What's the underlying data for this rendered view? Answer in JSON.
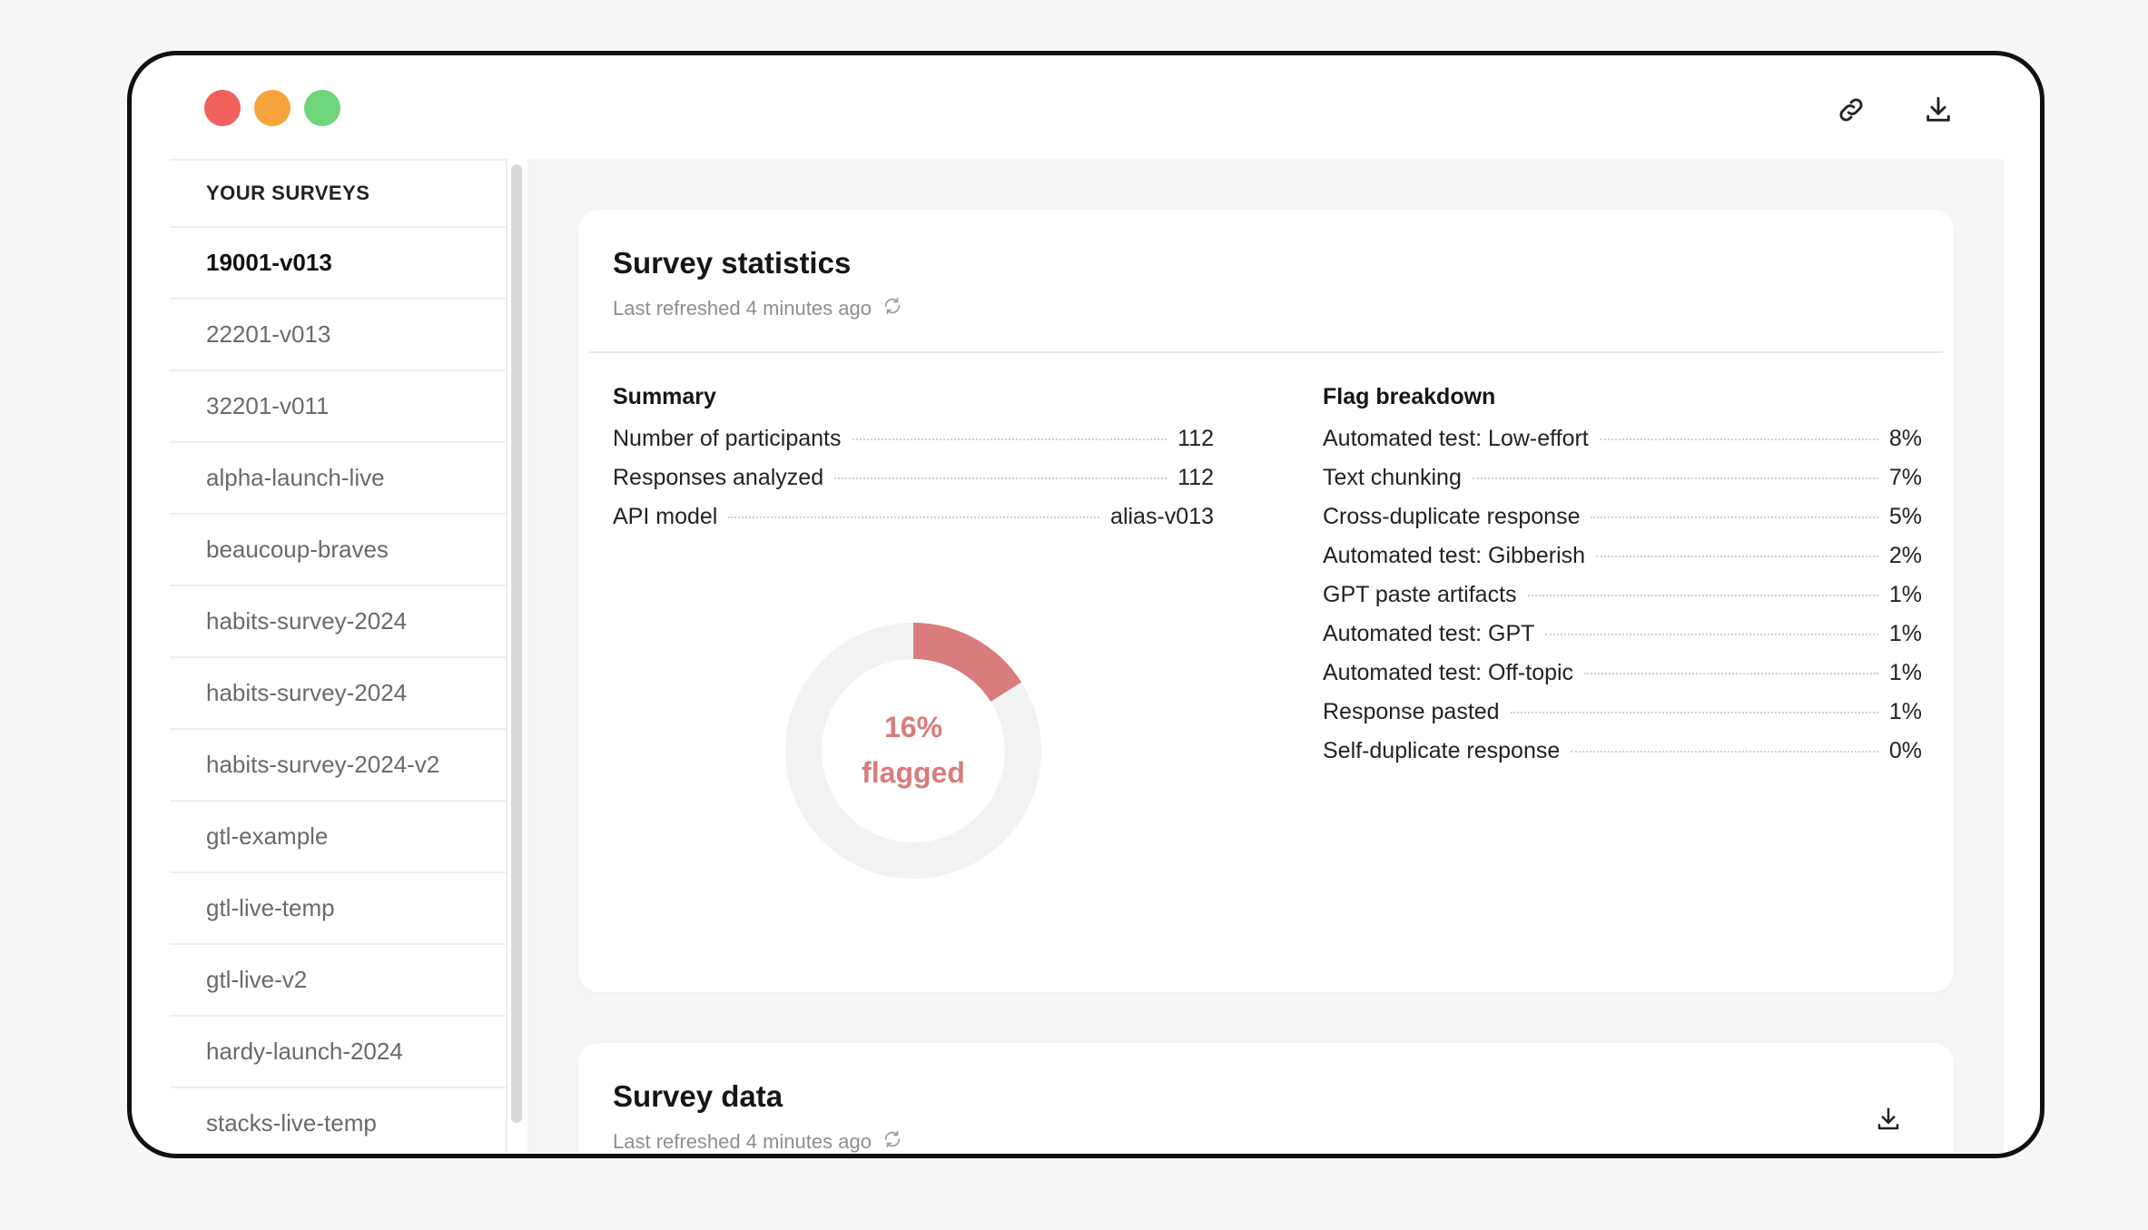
{
  "sidebar": {
    "header": "YOUR SURVEYS",
    "items": [
      {
        "label": "19001-v013"
      },
      {
        "label": "22201-v013"
      },
      {
        "label": "32201-v011"
      },
      {
        "label": "alpha-launch-live"
      },
      {
        "label": "beaucoup-braves"
      },
      {
        "label": "habits-survey-2024"
      },
      {
        "label": "habits-survey-2024"
      },
      {
        "label": "habits-survey-2024-v2"
      },
      {
        "label": "gtl-example"
      },
      {
        "label": "gtl-live-temp"
      },
      {
        "label": "gtl-live-v2"
      },
      {
        "label": "hardy-launch-2024"
      },
      {
        "label": "stacks-live-temp"
      }
    ]
  },
  "stats": {
    "title": "Survey statistics",
    "refreshed": "Last refreshed 4 minutes ago",
    "summary": {
      "title": "Summary",
      "rows": [
        {
          "label": "Number of participants",
          "value": "112"
        },
        {
          "label": "Responses analyzed",
          "value": "112"
        },
        {
          "label": "API model",
          "value": "alias-v013"
        }
      ]
    },
    "donut": {
      "percent_text": "16%",
      "caption": "flagged",
      "fraction": 0.16,
      "color": "#d97c7c",
      "track_color": "#f1f2f4"
    },
    "flags": {
      "title": "Flag breakdown",
      "rows": [
        {
          "label": "Automated test: Low-effort",
          "value": "8%"
        },
        {
          "label": "Text chunking",
          "value": "7%"
        },
        {
          "label": "Cross-duplicate response",
          "value": "5%"
        },
        {
          "label": "Automated test: Gibberish",
          "value": "2%"
        },
        {
          "label": "GPT paste artifacts",
          "value": "1%"
        },
        {
          "label": "Automated test: GPT",
          "value": "1%"
        },
        {
          "label": "Automated test: Off-topic",
          "value": "1%"
        },
        {
          "label": "Response pasted",
          "value": "1%"
        },
        {
          "label": "Self-duplicate response",
          "value": "0%"
        }
      ]
    }
  },
  "data_card": {
    "title": "Survey data",
    "refreshed": "Last refreshed 4 minutes ago"
  },
  "icons": {
    "titlebar": [
      "link-icon",
      "download-icon"
    ],
    "refresh": "refresh-icon"
  }
}
